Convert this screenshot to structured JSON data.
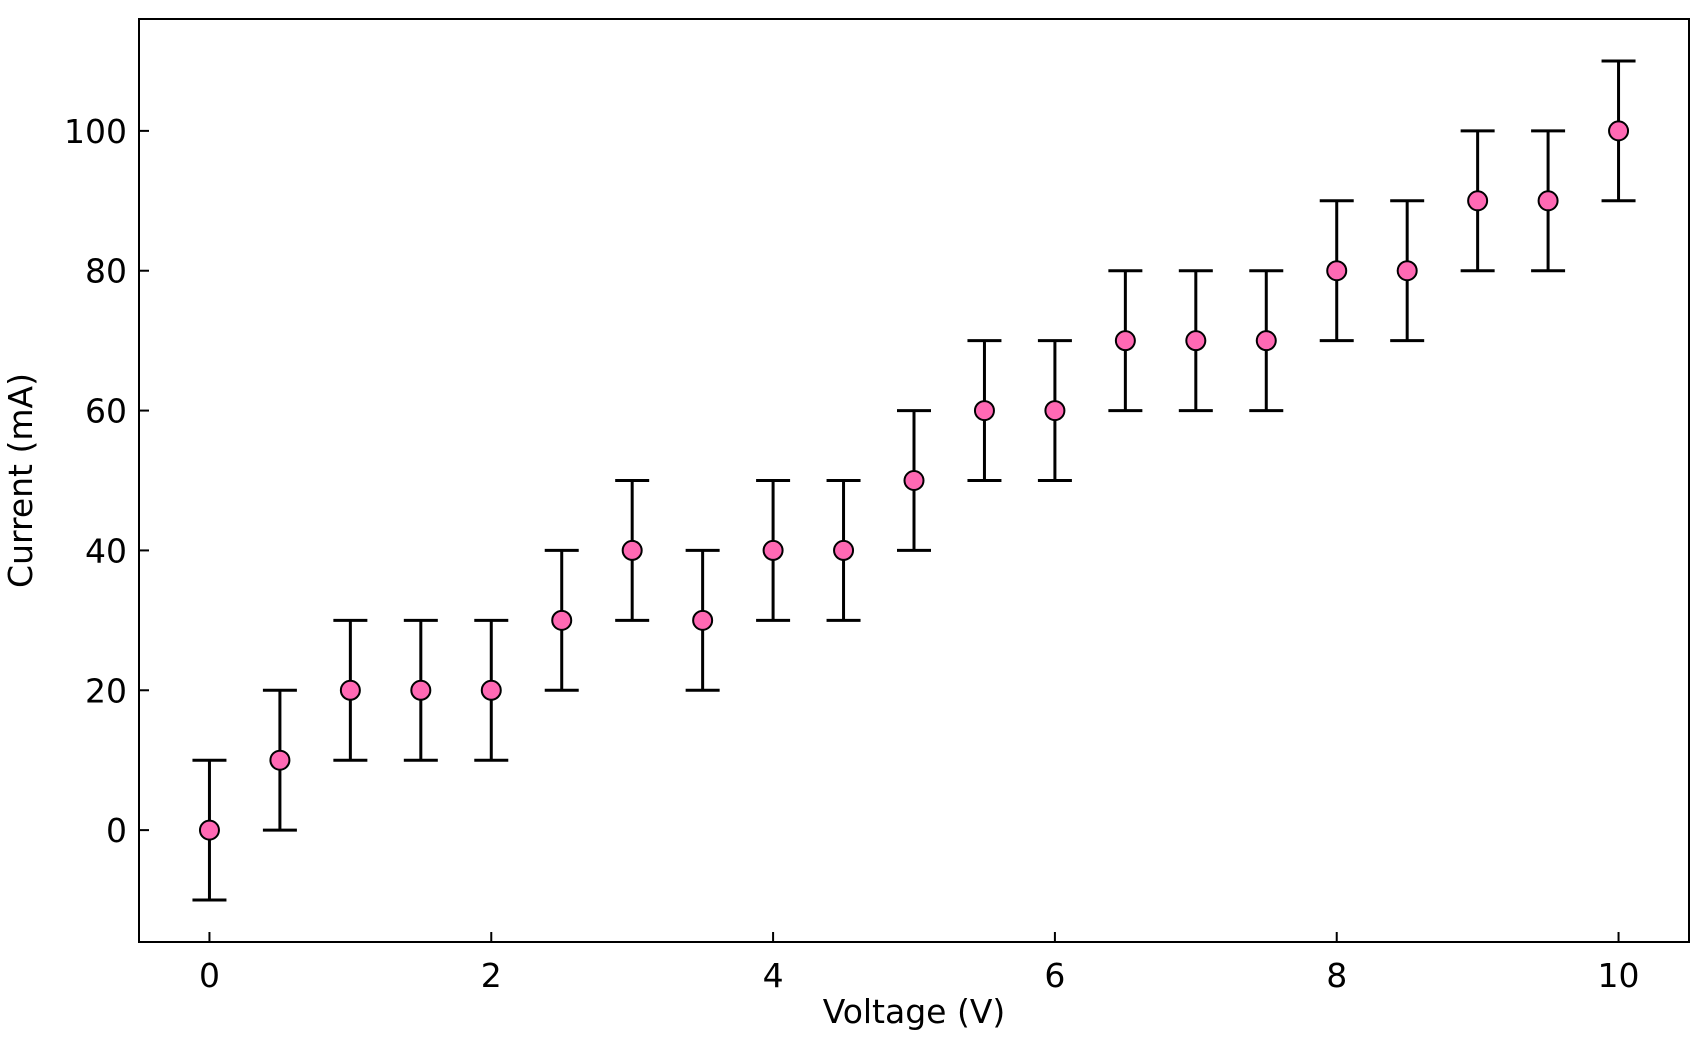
{
  "chart_data": {
    "type": "scatter",
    "title": "",
    "xlabel": "Voltage (V)",
    "ylabel": "Current (mA)",
    "xlim": [
      -0.5,
      10.5
    ],
    "ylim": [
      -16,
      116
    ],
    "x_ticks": [
      0,
      2,
      4,
      6,
      8,
      10
    ],
    "y_ticks": [
      0,
      20,
      40,
      60,
      80,
      100
    ],
    "x_tick_labels": [
      "0",
      "2",
      "4",
      "6",
      "8",
      "10"
    ],
    "y_tick_labels": [
      "0",
      "20",
      "40",
      "60",
      "80",
      "100"
    ],
    "grid": false,
    "tick_direction": "in",
    "series": [
      {
        "marker_color": "#ff69b4",
        "marker_edge_color": "#000000",
        "errorbar_color": "#000000",
        "x": [
          0,
          0.5,
          1,
          1.5,
          2,
          2.5,
          3,
          3.5,
          4,
          4.5,
          5,
          5.5,
          6,
          6.5,
          7,
          7.5,
          8,
          8.5,
          9,
          9.5,
          10
        ],
        "y": [
          0,
          10,
          20,
          20,
          20,
          30,
          40,
          30,
          40,
          40,
          50,
          60,
          60,
          70,
          70,
          70,
          80,
          80,
          90,
          90,
          100
        ],
        "yerr": [
          10,
          10,
          10,
          10,
          10,
          10,
          10,
          10,
          10,
          10,
          10,
          10,
          10,
          10,
          10,
          10,
          10,
          10,
          10,
          10,
          10
        ]
      }
    ]
  }
}
